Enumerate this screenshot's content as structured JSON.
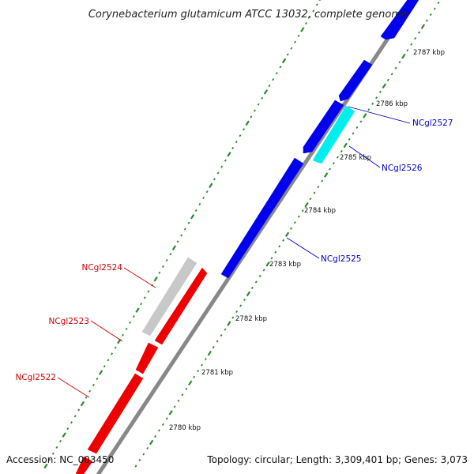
{
  "title": "Corynebacterium glutamicum ATCC 13032, complete genome",
  "accession": "Accession: NC_003450",
  "topology": "Topology: circular; Length: 3,309,401 bp; Genes: 3,073",
  "colors": {
    "forward": "#0000ee",
    "reverse": "#ee0000",
    "highlight": "#00eeee",
    "pseudo": "#c8c8c8",
    "backbone": "#888888",
    "ticks": "#2a8a2a"
  },
  "ticks": [
    "2780 kbp",
    "2781 kbp",
    "2782 kbp",
    "2783 kbp",
    "2784 kbp",
    "2785 kbp",
    "2786 kbp",
    "2787 kbp"
  ],
  "gene_labels": [
    {
      "text": "NCgl2527",
      "color": "#0000cc"
    },
    {
      "text": "NCgl2526",
      "color": "#0000cc"
    },
    {
      "text": "NCgl2525",
      "color": "#0000cc"
    },
    {
      "text": "NCgl2524",
      "color": "#cc0000"
    },
    {
      "text": "NCgl2523",
      "color": "#cc0000"
    },
    {
      "text": "NCgl2522",
      "color": "#cc0000"
    }
  ]
}
